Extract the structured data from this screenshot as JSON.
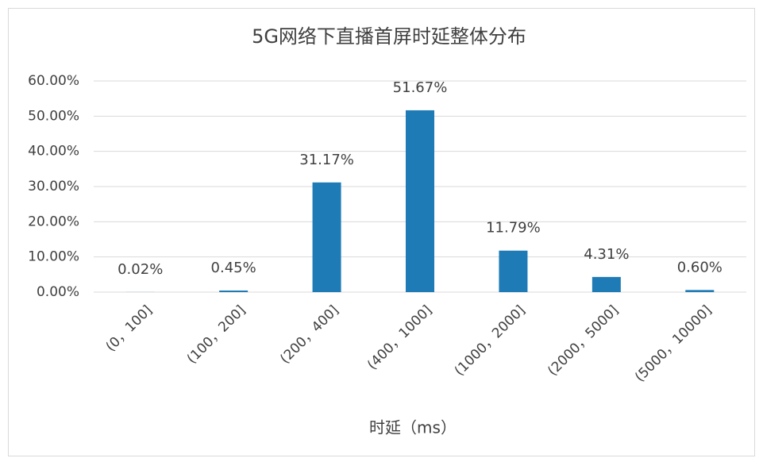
{
  "chart_data": {
    "type": "bar",
    "title": "5G网络下直播首屏时延整体分布",
    "x_label": "时延（ms）",
    "categories": [
      "(0，100]",
      "(100，200]",
      "(200，400]",
      "(400，1000]",
      "(1000，2000]",
      "(2000，5000]",
      "(5000，10000]"
    ],
    "values": [
      0.02,
      0.45,
      31.17,
      51.67,
      11.79,
      4.31,
      0.6
    ],
    "value_labels": [
      "0.02%",
      "0.45%",
      "31.17%",
      "51.67%",
      "11.79%",
      "4.31%",
      "0.60%"
    ],
    "color": "#1f7bb6",
    "ylim": [
      0,
      60
    ],
    "yticks": [
      {
        "value": 0,
        "label": "0.00%"
      },
      {
        "value": 10,
        "label": "10.00%"
      },
      {
        "value": 20,
        "label": "20.00%"
      },
      {
        "value": 30,
        "label": "30.00%"
      },
      {
        "value": 40,
        "label": "40.00%"
      },
      {
        "value": 50,
        "label": "50.00%"
      },
      {
        "value": 60,
        "label": "60.00%"
      }
    ],
    "grid": true
  }
}
